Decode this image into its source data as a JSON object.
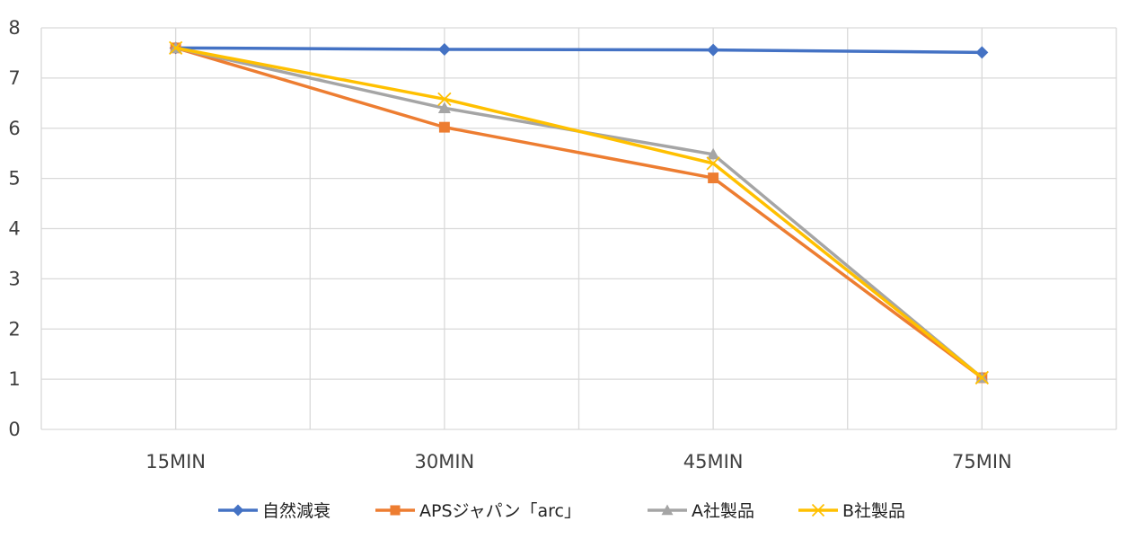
{
  "chart_data": {
    "type": "line",
    "title": "",
    "xlabel": "",
    "ylabel": "",
    "categories": [
      "15MIN",
      "30MIN",
      "45MIN",
      "75MIN"
    ],
    "ylim": [
      0,
      8
    ],
    "yticks": [
      "0",
      "1",
      "2",
      "3",
      "4",
      "5",
      "6",
      "7",
      "8"
    ],
    "grid": true,
    "legend_position": "bottom",
    "series": [
      {
        "name": "自然減衰",
        "values": [
          7.6,
          7.57,
          7.56,
          7.51
        ],
        "color": "#4472C4",
        "marker": "diamond"
      },
      {
        "name": "APSジャパン「arc」",
        "values": [
          7.6,
          6.02,
          5.01,
          1.03
        ],
        "color": "#ED7D31",
        "marker": "square"
      },
      {
        "name": "A社製品",
        "values": [
          7.6,
          6.4,
          5.48,
          1.03
        ],
        "color": "#A5A5A5",
        "marker": "triangle"
      },
      {
        "name": "B社製品",
        "values": [
          7.6,
          6.58,
          5.3,
          1.03
        ],
        "color": "#FFC000",
        "marker": "x"
      }
    ]
  }
}
